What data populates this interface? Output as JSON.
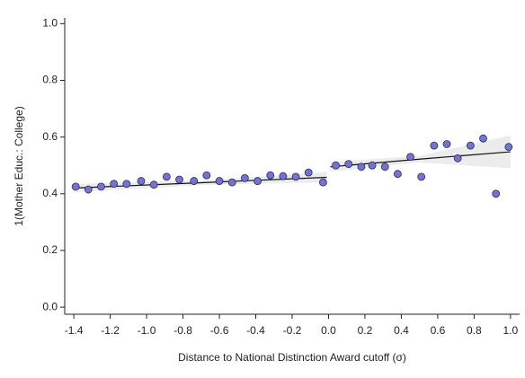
{
  "chart_data": {
    "type": "scatter",
    "ylabel": "1(Mother Educ.: College)",
    "xlabel": "Distance to National Distinction Award cutoff (σ)",
    "xlim": [
      -1.45,
      1.05
    ],
    "ylim": [
      -0.025,
      1.02
    ],
    "xticks": [
      -1.4,
      -1.2,
      {
        "value": -1,
        "label": "-1.0"
      },
      -0.8,
      -0.6,
      -0.4,
      -0.2,
      {
        "value": 0,
        "label": "0.0"
      },
      0.2,
      0.4,
      0.6,
      0.8,
      {
        "value": 1,
        "label": "1.0"
      }
    ],
    "yticks": [
      {
        "value": 0,
        "label": "0.0"
      },
      0.2,
      0.4,
      0.6,
      0.8,
      {
        "value": 1,
        "label": "1.0"
      }
    ],
    "grid": false,
    "points": {
      "color": "#7474cc",
      "x": [
        -1.39,
        -1.32,
        -1.25,
        -1.18,
        -1.11,
        -1.03,
        -0.96,
        -0.89,
        -0.82,
        -0.74,
        -0.67,
        -0.6,
        -0.53,
        -0.46,
        -0.39,
        -0.32,
        -0.25,
        -0.18,
        -0.11,
        -0.03,
        0.04,
        0.11,
        0.18,
        0.24,
        0.31,
        0.38,
        0.45,
        0.51,
        0.58,
        0.65,
        0.71,
        0.78,
        0.85,
        0.92,
        0.99
      ],
      "values": [
        0.425,
        0.415,
        0.425,
        0.435,
        0.435,
        0.445,
        0.432,
        0.46,
        0.45,
        0.445,
        0.465,
        0.445,
        0.44,
        0.455,
        0.445,
        0.465,
        0.462,
        0.46,
        0.475,
        0.44,
        0.5,
        0.505,
        0.495,
        0.5,
        0.495,
        0.47,
        0.53,
        0.46,
        0.57,
        0.575,
        0.525,
        0.57,
        0.595,
        0.4,
        0.565
      ]
    },
    "fits": [
      {
        "color": "#111111",
        "band_color": "#ececec",
        "x": [
          -1.4,
          -0.7,
          -0.01
        ],
        "values": [
          0.42,
          0.439,
          0.458
        ],
        "lower": [
          0.405,
          0.431,
          0.44
        ],
        "upper": [
          0.435,
          0.447,
          0.476
        ]
      },
      {
        "color": "#111111",
        "band_color": "#ececec",
        "x": [
          0.01,
          0.5,
          1.0
        ],
        "values": [
          0.495,
          0.522,
          0.548
        ],
        "lower": [
          0.478,
          0.51,
          0.49
        ],
        "upper": [
          0.512,
          0.534,
          0.606
        ]
      }
    ]
  }
}
